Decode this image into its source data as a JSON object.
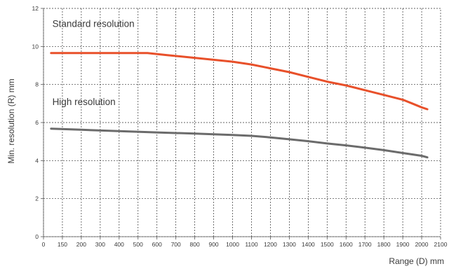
{
  "chart_data": {
    "type": "line",
    "xlabel": "Range (D) mm",
    "ylabel": "Min. resolution (R) mm",
    "xlim": [
      0,
      2100
    ],
    "ylim": [
      0,
      12
    ],
    "x_ticks": [
      0,
      150,
      200,
      300,
      400,
      500,
      600,
      700,
      800,
      900,
      1000,
      1100,
      1200,
      1300,
      1400,
      1500,
      1600,
      1700,
      1800,
      1900,
      2000,
      2100
    ],
    "y_ticks": [
      0,
      2,
      4,
      6,
      8,
      10,
      12
    ],
    "grid": true,
    "annotations": [
      {
        "text": "Standard resolution",
        "x": 70,
        "y": 11.2
      },
      {
        "text": "High resolution",
        "x": 70,
        "y": 7.1
      }
    ],
    "series": [
      {
        "color": "#e8502a",
        "x": [
          60,
          200,
          400,
          550,
          650,
          800,
          1000,
          1100,
          1200,
          1300,
          1400,
          1500,
          1600,
          1700,
          1800,
          1900,
          1950,
          2000,
          2030
        ],
        "y": [
          9.65,
          9.65,
          9.65,
          9.65,
          9.55,
          9.4,
          9.2,
          9.05,
          8.85,
          8.65,
          8.4,
          8.15,
          7.95,
          7.7,
          7.45,
          7.2,
          7.0,
          6.8,
          6.7
        ]
      },
      {
        "color": "#6b6b6b",
        "x": [
          60,
          200,
          400,
          600,
          800,
          1000,
          1100,
          1200,
          1300,
          1400,
          1500,
          1600,
          1700,
          1800,
          1900,
          2000,
          2030
        ],
        "y": [
          5.68,
          5.62,
          5.55,
          5.48,
          5.42,
          5.35,
          5.3,
          5.22,
          5.12,
          5.02,
          4.9,
          4.8,
          4.68,
          4.55,
          4.4,
          4.25,
          4.17
        ]
      }
    ]
  }
}
